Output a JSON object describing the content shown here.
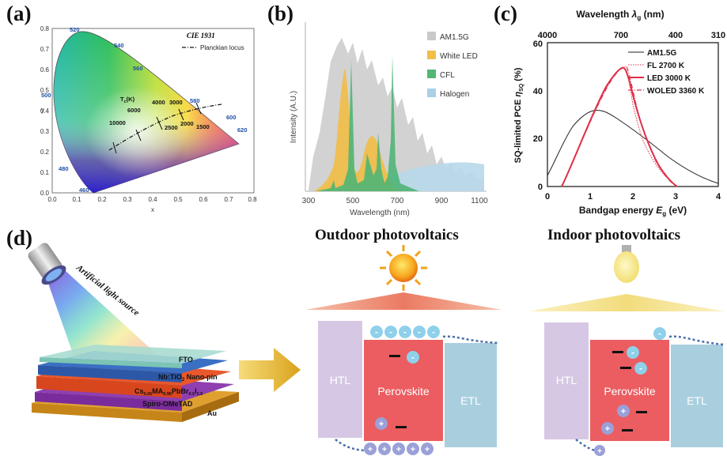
{
  "labels": {
    "a": "(a)",
    "b": "(b)",
    "c": "(c)",
    "d": "(d)"
  },
  "panel_a": {
    "title": "CIE 1931",
    "legend": "Planckian locus",
    "xlabel": "x",
    "ylabel": "y",
    "x_ticks": [
      "0.0",
      "0.1",
      "0.2",
      "0.3",
      "0.4",
      "0.5",
      "0.6",
      "0.7",
      "0.8"
    ],
    "y_ticks": [
      "0.0",
      "0.1",
      "0.2",
      "0.3",
      "0.4",
      "0.5",
      "0.6",
      "0.7",
      "0.8"
    ],
    "wavelength_labels": [
      "520",
      "540",
      "560",
      "580",
      "600",
      "620",
      "500",
      "480",
      "460"
    ],
    "tc_label": "T",
    "tc_sub": "c",
    "tc_unit": "(K)",
    "temps": [
      "10000",
      "6000",
      "4000",
      "3000",
      "2500",
      "2000",
      "1500"
    ]
  },
  "panel_b": {
    "ylabel": "Intensity (A.U.)",
    "xlabel": "Wavelength (nm)",
    "x_ticks": [
      "300",
      "500",
      "700",
      "900",
      "1100"
    ],
    "legend": [
      {
        "label": "AM1.5G",
        "color": "#c9c9c9"
      },
      {
        "label": "White LED",
        "color": "#f2be48"
      },
      {
        "label": "CFL",
        "color": "#52b675"
      },
      {
        "label": "Halogen",
        "color": "#a9d0e4"
      }
    ]
  },
  "panel_c": {
    "top_label": "Wavelength ",
    "top_lambda": "λ",
    "top_sub": "g",
    "top_unit": " (nm)",
    "top_ticks": [
      "4000",
      "700",
      "400",
      "310"
    ],
    "ylabel_main": "SQ-limited PCE ",
    "ylabel_eta": "η",
    "ylabel_sub": "SQ",
    "ylabel_unit": " (%)",
    "xlabel_main": "Bandgap energy ",
    "xlabel_E": "E",
    "xlabel_sub": "g",
    "xlabel_unit": " (eV)",
    "x_ticks": [
      "0",
      "1",
      "2",
      "3",
      "4"
    ],
    "y_ticks": [
      "0",
      "20",
      "40",
      "60"
    ],
    "legend": [
      "AM1.5G",
      "FL 2700 K",
      "LED 3000 K",
      "WOLED 3360 K"
    ]
  },
  "panel_d": {
    "light_source": "Artificial light source",
    "layers": [
      "FTO",
      "Nb:TiO",
      "2",
      " Nano-pin",
      "Cs",
      "0.05",
      "MA",
      "0.95",
      "PbBr",
      "0.5",
      "I",
      "2.5",
      "Spiro-OMeTAD",
      "Au"
    ],
    "outdoor_title": "Outdoor photovoltaics",
    "indoor_title": "Indoor photovoltaics",
    "htl": "HTL",
    "perovskite": "Perovskite",
    "etl": "ETL",
    "minus": "-",
    "plus": "+"
  },
  "colors": {
    "am15g": "#c9c9c9",
    "white_led": "#f2be48",
    "cfl": "#52b675",
    "halogen": "#a9d0e4",
    "pce_red": "#e0304a",
    "htl": "#d6c8e4",
    "perovskite": "#eb5d60",
    "etl": "#a9cfdf",
    "carrier": "#8fd0ea",
    "hole": "#9aa0d8"
  }
}
